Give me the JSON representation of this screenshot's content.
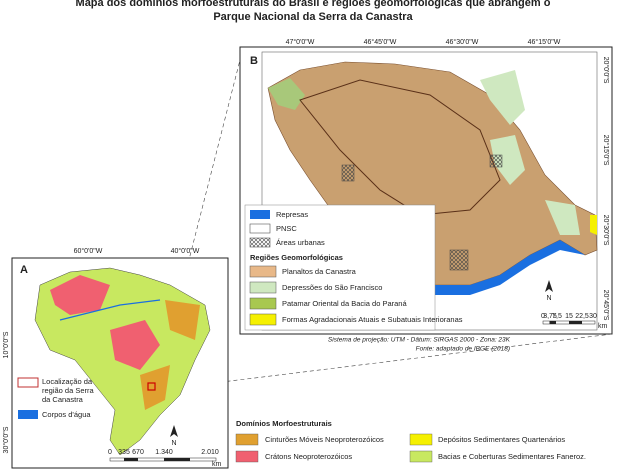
{
  "title": [
    "Mapa dos domínios morfoestruturais do Brasil e regiões geomorfológicas que abrangem o",
    "Parque Nacional da Serra da Canastra"
  ],
  "panel_b": {
    "label": "B",
    "longitudes": [
      "47°0'0\"W",
      "46°45'0\"W",
      "46°30'0\"W",
      "46°15'0\"W"
    ],
    "latitudes": [
      "20°0'0\"S",
      "20°15'0\"S",
      "20°30'0\"S",
      "20°45'0\"S"
    ],
    "legend": [
      "Represas",
      "PNSC",
      "Áreas urbanas"
    ],
    "regions_heading": "Regiões Geomorfológicas",
    "regions": [
      "Planaltos da Canastra",
      "Depressões do São Francisco",
      "Patamar Oriental da Bacia do Paraná",
      "Formas Agradacionais Atuais e Subatuais Interioranas"
    ],
    "north": "N",
    "scale": [
      "0",
      "3,75",
      "7,5",
      "15",
      "22,5",
      "30"
    ],
    "scale_unit": "km"
  },
  "notes": [
    "Sistema de projeção: UTM - Dâtum: SIRGAS 2000 - Zona: 23K",
    "Fonte: adaptado de IBGE (2018)"
  ],
  "panel_a": {
    "label": "A",
    "longitudes": [
      "60°0'0\"W",
      "40°0'0\"W"
    ],
    "latitudes": [
      "10°0'0\"S",
      "30°0'0\"S"
    ],
    "legend": [
      [
        "Localização da",
        "região da Serra",
        "da Canastra"
      ],
      "Corpos d'água"
    ],
    "north": "N",
    "scale": [
      "0",
      "335",
      "670",
      "1.340",
      "2.010"
    ],
    "scale_unit": "km"
  },
  "domains": {
    "heading": "Domínios Morfoestruturais",
    "items": [
      "Cinturões Móveis Neoproterozóicos",
      "Crátons Neoproterozóicos",
      "Depósitos Sedimentares Quartenários",
      "Bacias e Coberturas Sedimentares Faneroz."
    ]
  }
}
